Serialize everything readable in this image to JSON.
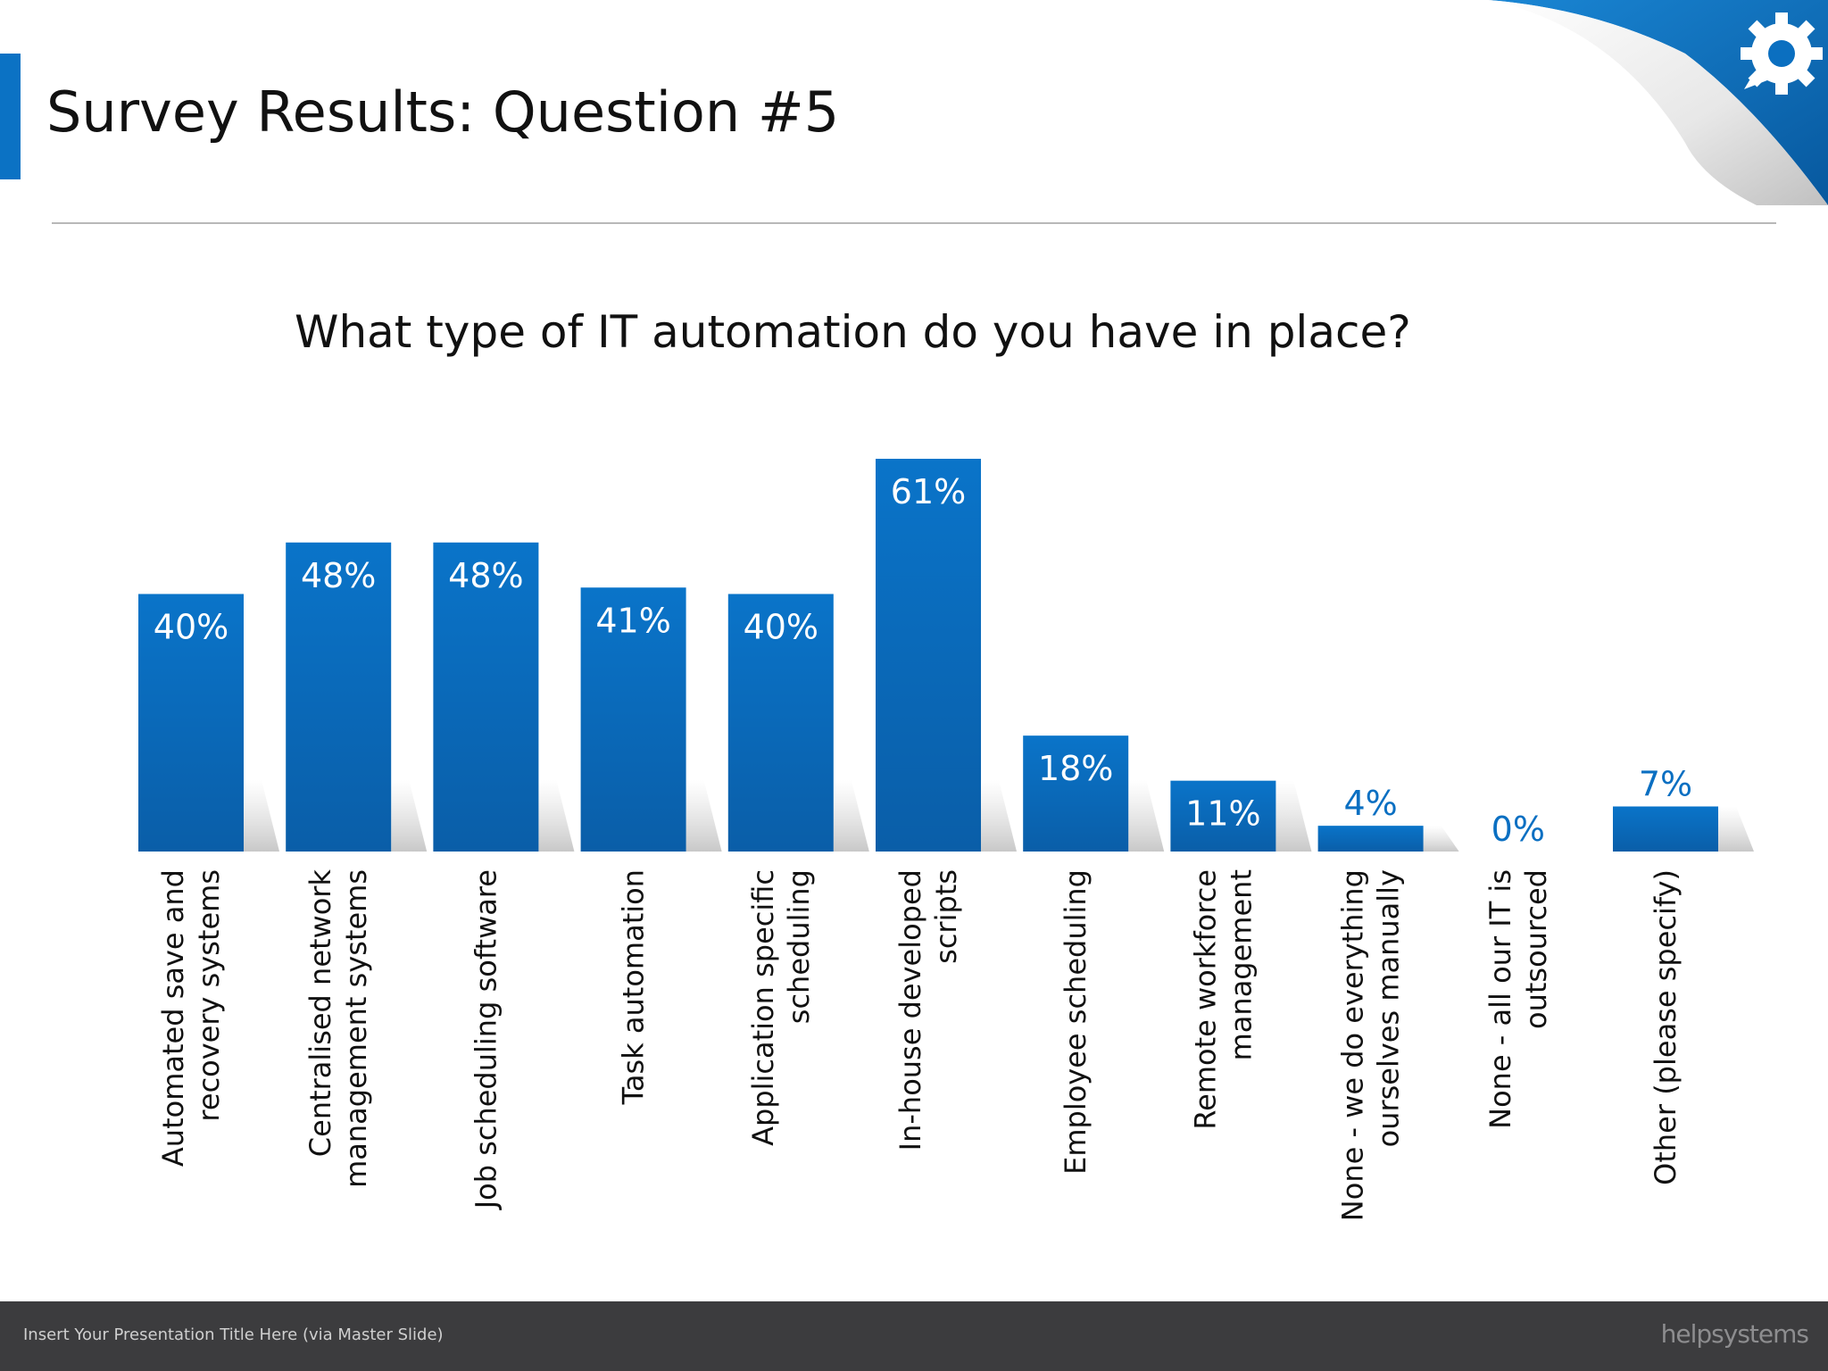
{
  "slide": {
    "title": "Survey Results: Question #5",
    "footer_text": "Insert Your Presentation Title Here (via Master Slide)",
    "brand": "helpsystems",
    "logo_icon": "gear-chat-icon",
    "colors": {
      "accent": "#0b72c4",
      "bar_top": "#0a74c9",
      "bar_bottom": "#0a5ea8",
      "footer": "#3c3c3e"
    }
  },
  "chart_data": {
    "type": "bar",
    "title": "What type of IT automation do you have in place?",
    "xlabel": "",
    "ylabel": "",
    "ylim": [
      0,
      100
    ],
    "grid": false,
    "categories": [
      "Automated save and recovery systems",
      "Centralised network management systems",
      "Job scheduling software",
      "Task automation",
      "Application specific scheduling",
      "In-house developed scripts",
      "Employee scheduling",
      "Remote workforce management",
      "None - we do everything ourselves manually",
      "None - all our IT is outsourced",
      "Other (please specify)"
    ],
    "category_label_lines": [
      [
        "Automated save and",
        "recovery systems"
      ],
      [
        "Centralised network",
        "management systems"
      ],
      [
        "Job scheduling software"
      ],
      [
        "Task automation"
      ],
      [
        "Application specific",
        "scheduling"
      ],
      [
        "In-house developed",
        "scripts"
      ],
      [
        "Employee scheduling"
      ],
      [
        "Remote workforce",
        "management"
      ],
      [
        "None - we do everything",
        "ourselves manually"
      ],
      [
        "None - all our IT is",
        "outsourced"
      ],
      [
        "Other (please specify)"
      ]
    ],
    "values": [
      40,
      48,
      48,
      41,
      40,
      61,
      18,
      11,
      4,
      0,
      7
    ],
    "data_labels": [
      "40%",
      "48%",
      "48%",
      "41%",
      "40%",
      "61%",
      "18%",
      "11%",
      "4%",
      "0%",
      "7%"
    ]
  }
}
